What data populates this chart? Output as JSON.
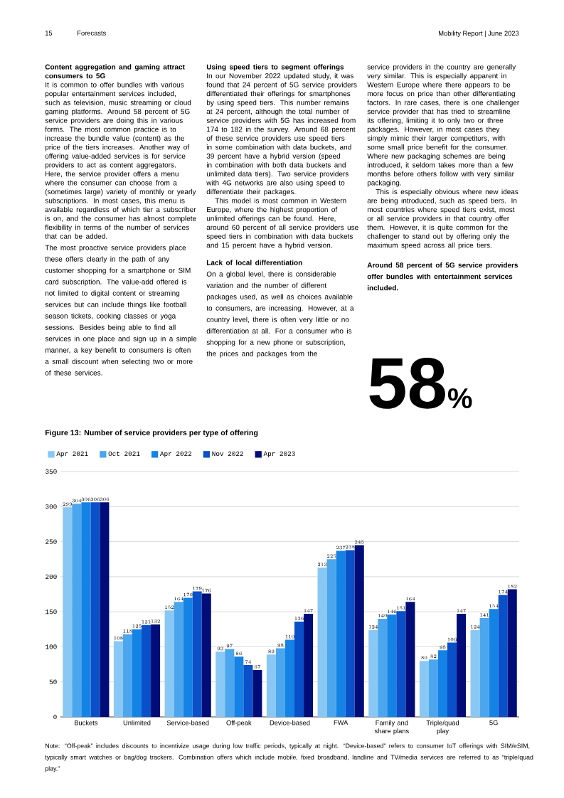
{
  "chart_data": {
    "type": "bar",
    "title": "Figure 13: Number of service providers per type of offering",
    "categories": [
      "Buckets",
      "Unlimited",
      "Service-based",
      "Off-peak",
      "Device-based",
      "FWA",
      "Family and share plans",
      "Triple/quad play",
      "5G"
    ],
    "series": [
      {
        "name": "Apr 2021",
        "color": "#89c8f5",
        "values": [
          299,
          108,
          152,
          93,
          89,
          213,
          124,
          80,
          124
        ]
      },
      {
        "name": "Oct 2021",
        "color": "#4ba6ee",
        "values": [
          304,
          118,
          164,
          97,
          98,
          225,
          140,
          82,
          141
        ]
      },
      {
        "name": "Apr 2022",
        "color": "#1582e6",
        "values": [
          306,
          125,
          170,
          86,
          110,
          237,
          146,
          95,
          154
        ]
      },
      {
        "name": "Nov 2022",
        "color": "#0a50c8",
        "values": [
          306,
          131,
          179,
          74,
          136,
          238,
          151,
          106,
          174
        ]
      },
      {
        "name": "Apr 2023",
        "color": "#000c78",
        "values": [
          306,
          132,
          176,
          67,
          147,
          245,
          164,
          147,
          182
        ]
      }
    ],
    "ylim": [
      0,
      350
    ],
    "yticks": [
      0,
      50,
      100,
      150,
      200,
      250,
      300,
      350
    ],
    "grid": "y",
    "legend": "top left",
    "data_labels": true,
    "annotations": [
      "15",
      "Forecasts",
      "Mobility Report | June 2023",
      "Content aggregation and gaming attract consumers to 5G",
      "It is common to offer bundles with various popular entertainment services included, such as television, music streaming or cloud gaming platforms. Around 58 percent of 5G service providers are doing this in various forms. The most common practice is to increase the bundle value (content) as the price of the tiers increases. Another way of offering value-added services is for service providers to act as content aggregators. Here, the service provider offers a menu where the consumer can choose from a (sometimes large) variety of monthly or yearly subscriptions. In most cases, this menu is available regardless of which tier a subscriber is on, and the consumer has almost complete flexibility in terms of the number of services that can be added.",
      "The most proactive service providers place these offers clearly in the path of any customer shopping for a smartphone or SIM card subscription. The value-add offered is not limited to digital content or streaming services but can include things like football season tickets, cooking classes or yoga sessions. Besides being able to find all services in one place and sign up in a simple manner, a key benefit to consumers is often a small discount when selecting two or more of these services.",
      "Using speed tiers to segment offerings",
      "In our November 2022 updated study, it was found that 24 percent of 5G service providers differentiated their offerings for smartphones by using speed tiers. This number remains at 24 percent, although the total number of service providers with 5G has increased from 174 to 182 in the survey. Around 68 percent of these service providers use speed tiers in some combination with data buckets, and 39 percent have a hybrid version (speed in combination with both data buckets and unlimited data tiers). Two service providers with 4G networks are also using speed to differentiate their packages.",
      "This model is most common in Western Europe, where the highest proportion of unlimited offerings can be found. Here, around 60 percent of all service providers use speed tiers in combination with data buckets and 15 percent have a hybrid version.",
      "Lack of local differentiation",
      "On a global level, there is considerable variation and the number of different packages used, as well as choices available to consumers, are increasing. However, at a country level, there is often very little or no differentiation at all. For a consumer who is shopping for a new phone or subscription, the prices and packages from the",
      "service providers in the country are generally very similar. This is especially apparent in Western Europe where there appears to be more focus on price than other differentiating factors. In rare cases, there is one challenger service provider that has tried to streamline its offering, limiting it to only two or three packages. However, in most cases they simply mimic their larger competitors, with some small price benefit for the consumer. Where new packaging schemes are being introduced, it seldom takes more than a few months before others follow with very similar packaging.",
      "This is especially obvious where new ideas are being introduced, such as speed tiers. In most countries where speed tiers exist, most or all service providers in that country offer them. However, it is quite common for the challenger to stand out by offering only the maximum speed across all price tiers.",
      "Around 58 percent of 5G service providers offer bundles with entertainment services included.",
      "58",
      "%",
      "Note: “Off-peak” includes discounts to incentivize usage during low traffic periods, typically at night. “Device-based” refers to consumer IoT offerings with SIM/eSIM, typically smart watches or bag/dog trackers. Combination offers which include mobile, fixed broadband, landline and TV/media services are referred to as “triple/quad play.”"
    ]
  }
}
